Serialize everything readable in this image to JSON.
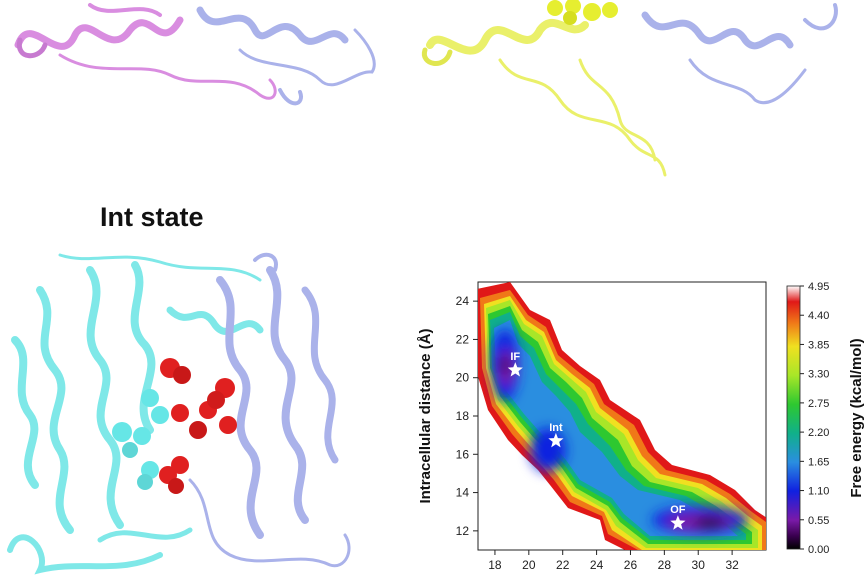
{
  "panel_title": "Int state",
  "colors": {
    "helix_pink": "#d98de0",
    "helix_lavender": "#aab2ea",
    "helix_yellow": "#eaf06a",
    "helix_cyan": "#7fe8e8",
    "sphere_red": "#e02020",
    "sphere_cyan": "#66e6e6",
    "sphere_yellow": "#e6ee30"
  },
  "chart_data": {
    "type": "heatmap",
    "title": "",
    "xlabel": "",
    "ylabel": "Intracellular distance (Å)",
    "colorbar_label": "Free energy (kcal/mol)",
    "xlim": [
      17,
      34
    ],
    "ylim": [
      11,
      25
    ],
    "xticks": [
      "18",
      "20",
      "22",
      "24",
      "26",
      "28",
      "30",
      "32"
    ],
    "yticks": [
      "12",
      "14",
      "16",
      "18",
      "20",
      "22",
      "24"
    ],
    "colorbar_ticks": [
      "0.00",
      "0.55",
      "1.10",
      "1.65",
      "2.20",
      "2.75",
      "3.30",
      "3.85",
      "4.40",
      "4.95"
    ],
    "colorbar_range": [
      0,
      4.95
    ],
    "states": [
      {
        "label": "IF",
        "x": 19.2,
        "y": 20.4
      },
      {
        "label": "Int",
        "x": 21.6,
        "y": 16.7
      },
      {
        "label": "OF",
        "x": 28.8,
        "y": 12.4
      }
    ]
  }
}
